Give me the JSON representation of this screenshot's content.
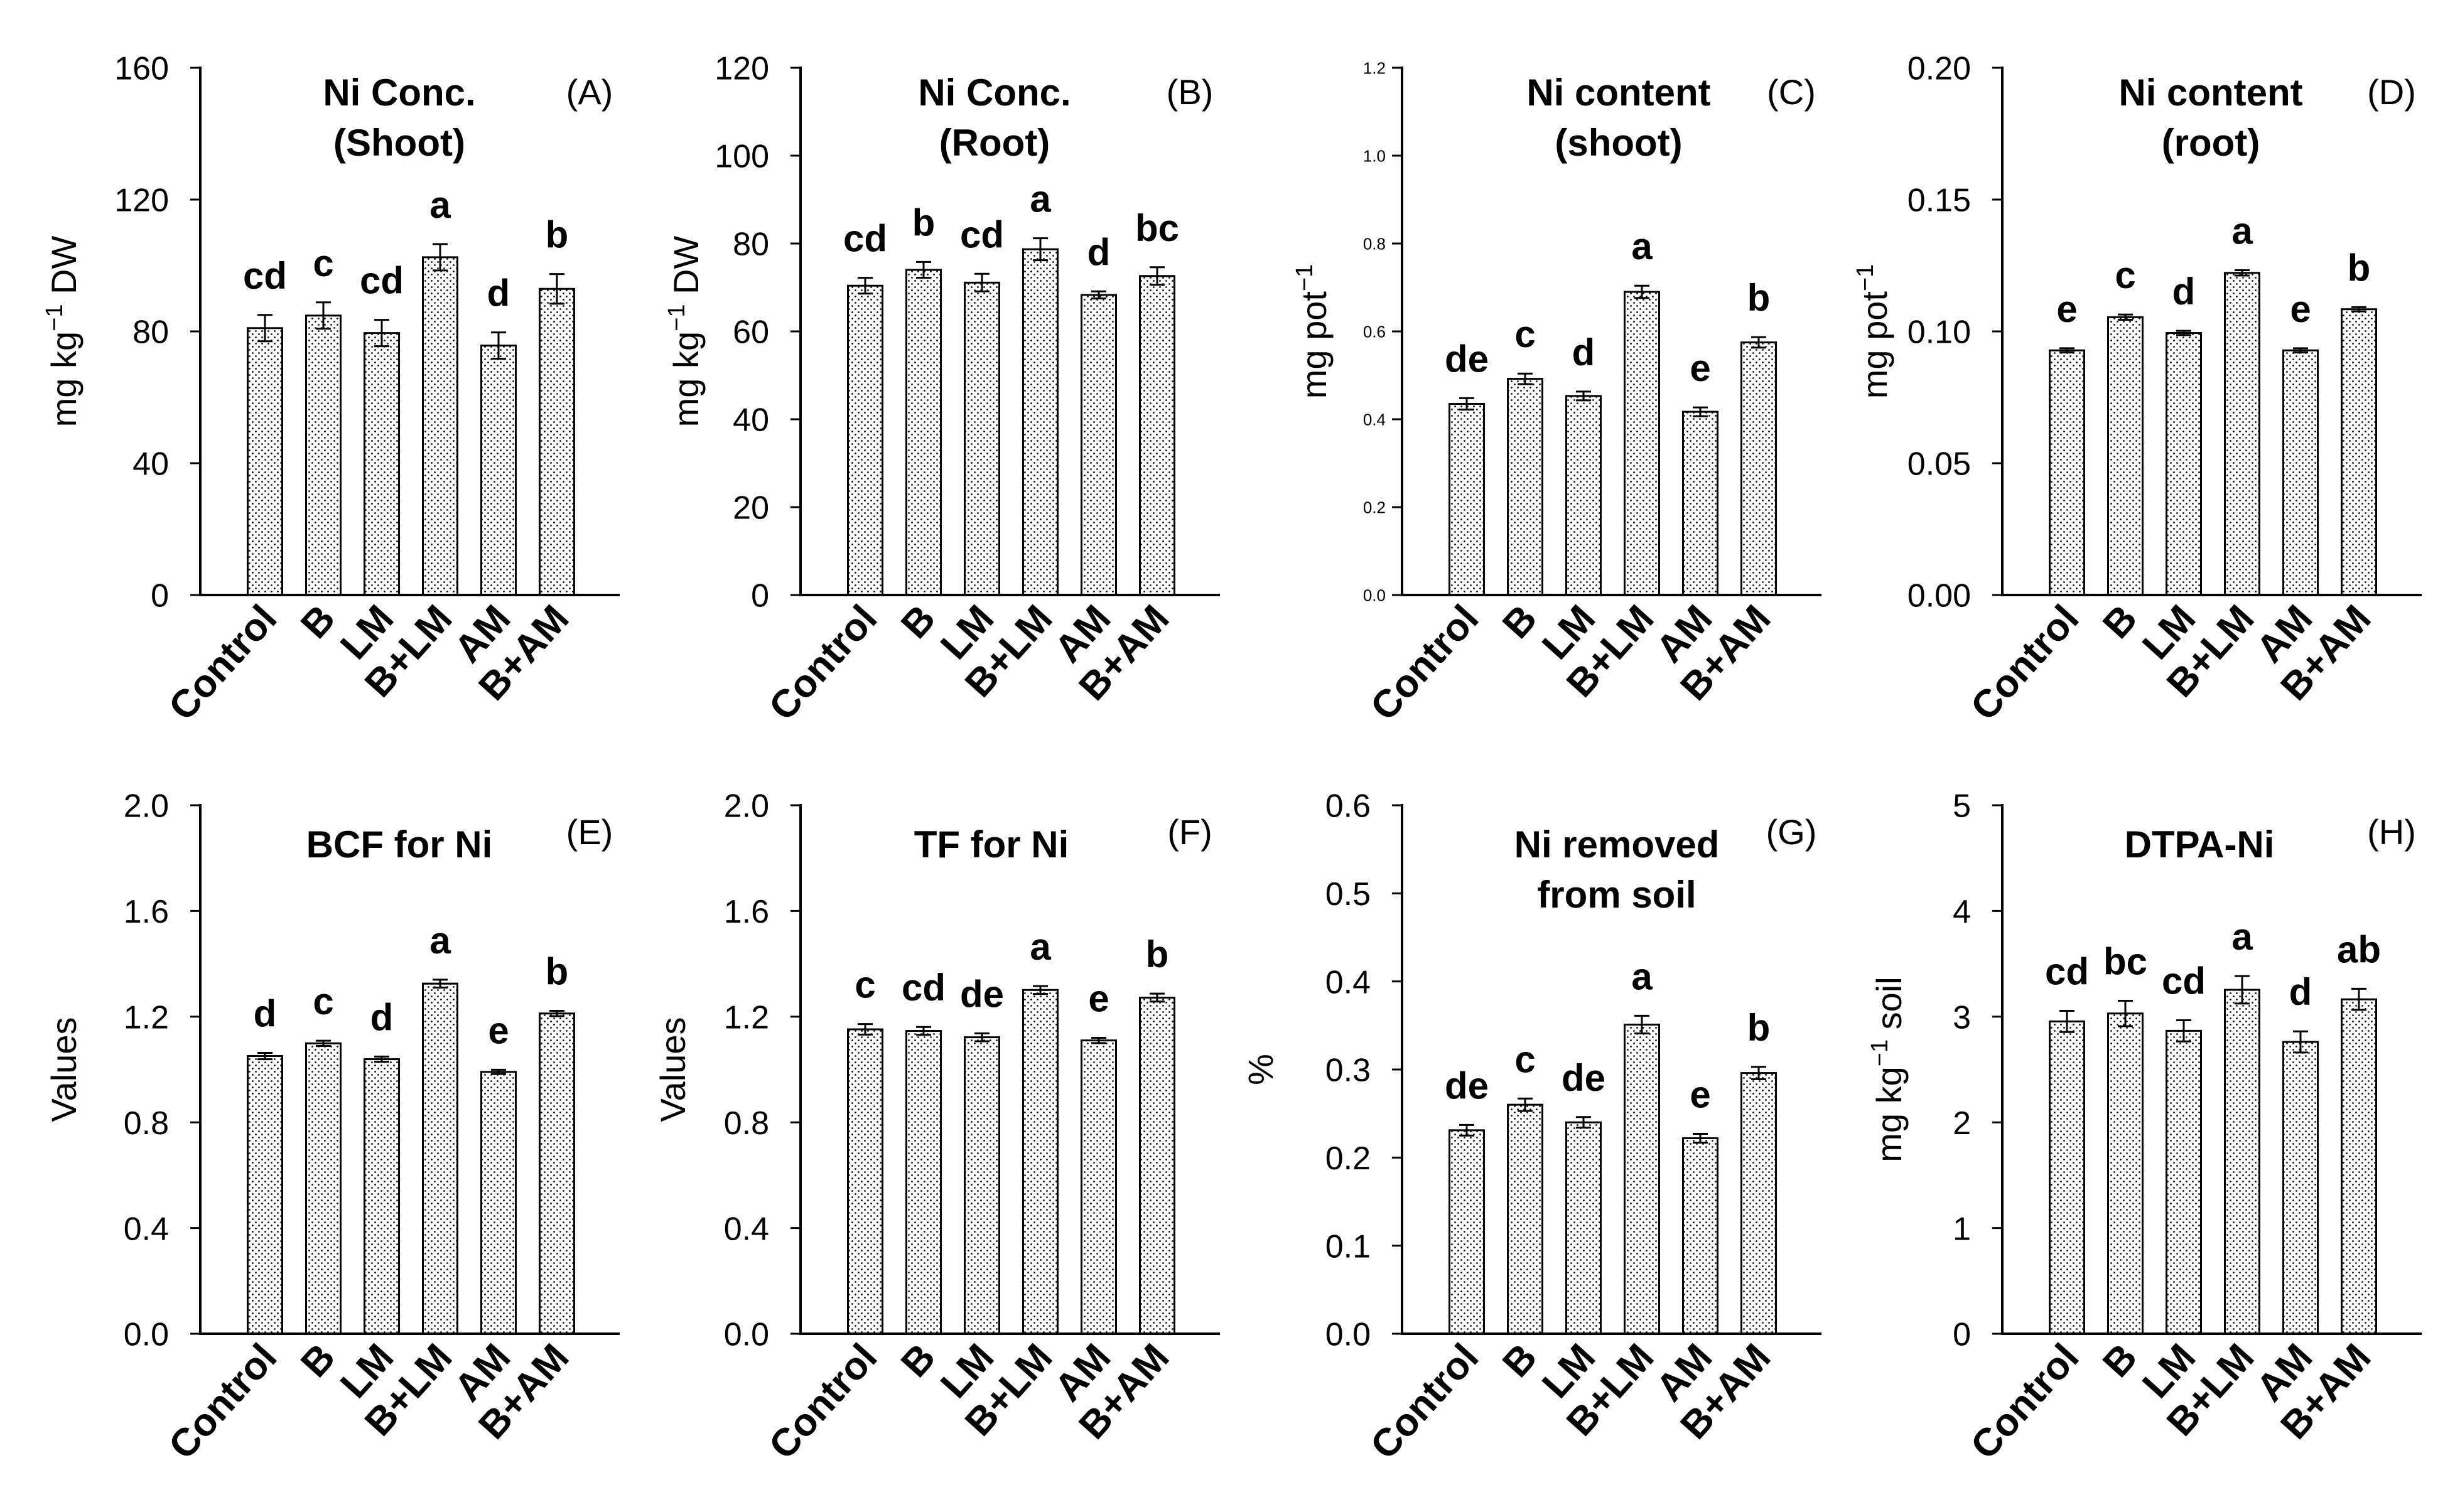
{
  "colors": {
    "background": "#ffffff",
    "bar_outline": "#000000",
    "bar_stipple": "#000000",
    "axis": "#000000"
  },
  "chart_data": [
    {
      "type": "bar",
      "panel_label": "(A)",
      "title": [
        "Ni Conc.",
        "(Shoot)"
      ],
      "ylabel": {
        "text": "mg kg",
        "sup": "−1",
        "after": " DW"
      },
      "ylim": [
        0,
        160
      ],
      "yticks": [
        "0",
        "40",
        "80",
        "120",
        "160"
      ],
      "categories": [
        "Control",
        "B",
        "LM",
        "B+LM",
        "AM",
        "B+AM"
      ],
      "values": [
        81.0,
        84.8,
        79.5,
        102.5,
        75.7,
        92.9
      ],
      "errors": [
        4.0,
        4.0,
        4.0,
        4.0,
        4.0,
        4.5
      ],
      "letters": [
        "cd",
        "c",
        "cd",
        "a",
        "d",
        "b"
      ]
    },
    {
      "type": "bar",
      "panel_label": "(B)",
      "title": [
        "Ni Conc.",
        "(Root)"
      ],
      "ylabel": {
        "text": "mg kg",
        "sup": "−1",
        "after": " DW"
      },
      "ylim": [
        0,
        120
      ],
      "yticks": [
        "0",
        "20",
        "40",
        "60",
        "80",
        "100",
        "120"
      ],
      "categories": [
        "Control",
        "B",
        "LM",
        "B+LM",
        "AM",
        "B+AM"
      ],
      "values": [
        70.4,
        74.0,
        71.1,
        78.7,
        68.3,
        72.6
      ],
      "errors": [
        1.8,
        1.8,
        2.0,
        2.5,
        0.8,
        2.0
      ],
      "letters": [
        "cd",
        "b",
        "cd",
        "a",
        "d",
        "bc"
      ]
    },
    {
      "type": "bar",
      "panel_label": "(C)",
      "title": [
        "Ni content",
        "(shoot)"
      ],
      "ylabel": {
        "text": "mg pot",
        "sup": "−1",
        "after": ""
      },
      "ylim": [
        0,
        1.2
      ],
      "yticks": [
        "0.0",
        "0.2",
        "0.4",
        "0.6",
        "0.8",
        "1.0",
        "1.2"
      ],
      "categories": [
        "Control",
        "B",
        "LM",
        "B+LM",
        "AM",
        "B+AM"
      ],
      "values": [
        0.435,
        0.492,
        0.453,
        0.69,
        0.417,
        0.575
      ],
      "errors": [
        0.013,
        0.012,
        0.01,
        0.014,
        0.01,
        0.012
      ],
      "letters": [
        "de",
        "c",
        "d",
        "a",
        "e",
        "b"
      ]
    },
    {
      "type": "bar",
      "panel_label": "(D)",
      "title": [
        "Ni content",
        "(root)"
      ],
      "ylabel": {
        "text": "mg pot",
        "sup": "−1",
        "after": ""
      },
      "ylim": [
        0,
        0.2
      ],
      "yticks": [
        "0.00",
        "0.05",
        "0.10",
        "0.15",
        "0.20"
      ],
      "categories": [
        "Control",
        "B",
        "LM",
        "B+LM",
        "AM",
        "B+AM"
      ],
      "values": [
        0.0928,
        0.1054,
        0.0994,
        0.1222,
        0.0928,
        0.1084
      ],
      "errors": [
        0.0008,
        0.001,
        0.0008,
        0.001,
        0.0008,
        0.0008
      ],
      "letters": [
        "e",
        "c",
        "d",
        "a",
        "e",
        "b"
      ]
    },
    {
      "type": "bar",
      "panel_label": "(E)",
      "title": [
        "BCF for Ni"
      ],
      "ylabel": {
        "text": "Values"
      },
      "ylim": [
        0,
        2.0
      ],
      "yticks": [
        "0.0",
        "0.4",
        "0.8",
        "1.2",
        "1.6",
        "2.0"
      ],
      "categories": [
        "Control",
        "B",
        "LM",
        "B+LM",
        "AM",
        "B+AM"
      ],
      "values": [
        1.051,
        1.099,
        1.039,
        1.325,
        0.991,
        1.212
      ],
      "errors": [
        0.012,
        0.01,
        0.01,
        0.015,
        0.008,
        0.01
      ],
      "letters": [
        "d",
        "c",
        "d",
        "a",
        "e",
        "b"
      ]
    },
    {
      "type": "bar",
      "panel_label": "(F)",
      "title": [
        "TF for Ni"
      ],
      "ylabel": {
        "text": "Values"
      },
      "ylim": [
        0,
        2.0
      ],
      "yticks": [
        "0.0",
        "0.4",
        "0.8",
        "1.2",
        "1.6",
        "2.0"
      ],
      "categories": [
        "Control",
        "B",
        "LM",
        "B+LM",
        "AM",
        "B+AM"
      ],
      "values": [
        1.152,
        1.146,
        1.122,
        1.301,
        1.11,
        1.272
      ],
      "errors": [
        0.02,
        0.015,
        0.015,
        0.015,
        0.01,
        0.015
      ],
      "letters": [
        "c",
        "cd",
        "de",
        "a",
        "e",
        "b"
      ]
    },
    {
      "type": "bar",
      "panel_label": "(G)",
      "title": [
        "Ni removed",
        "from soil"
      ],
      "ylabel": {
        "text": "%"
      },
      "ylim": [
        0,
        0.6
      ],
      "yticks": [
        "0.0",
        "0.1",
        "0.2",
        "0.3",
        "0.4",
        "0.5",
        "0.6"
      ],
      "categories": [
        "Control",
        "B",
        "LM",
        "B+LM",
        "AM",
        "B+AM"
      ],
      "values": [
        0.231,
        0.26,
        0.24,
        0.351,
        0.222,
        0.296
      ],
      "errors": [
        0.006,
        0.007,
        0.006,
        0.01,
        0.005,
        0.007
      ],
      "letters": [
        "de",
        "c",
        "de",
        "a",
        "e",
        "b"
      ]
    },
    {
      "type": "bar",
      "panel_label": "(H)",
      "title": [
        "DTPA-Ni"
      ],
      "ylabel": {
        "text": "mg kg",
        "sup": "−1",
        "after": " soil"
      },
      "ylim": [
        0,
        5
      ],
      "yticks": [
        "0",
        "1",
        "2",
        "3",
        "4",
        "5"
      ],
      "categories": [
        "Control",
        "B",
        "LM",
        "B+LM",
        "AM",
        "B+AM"
      ],
      "values": [
        2.955,
        3.03,
        2.866,
        3.254,
        2.761,
        3.164
      ],
      "errors": [
        0.1,
        0.12,
        0.1,
        0.13,
        0.1,
        0.1
      ],
      "letters": [
        "cd",
        "bc",
        "cd",
        "a",
        "d",
        "ab"
      ]
    }
  ]
}
